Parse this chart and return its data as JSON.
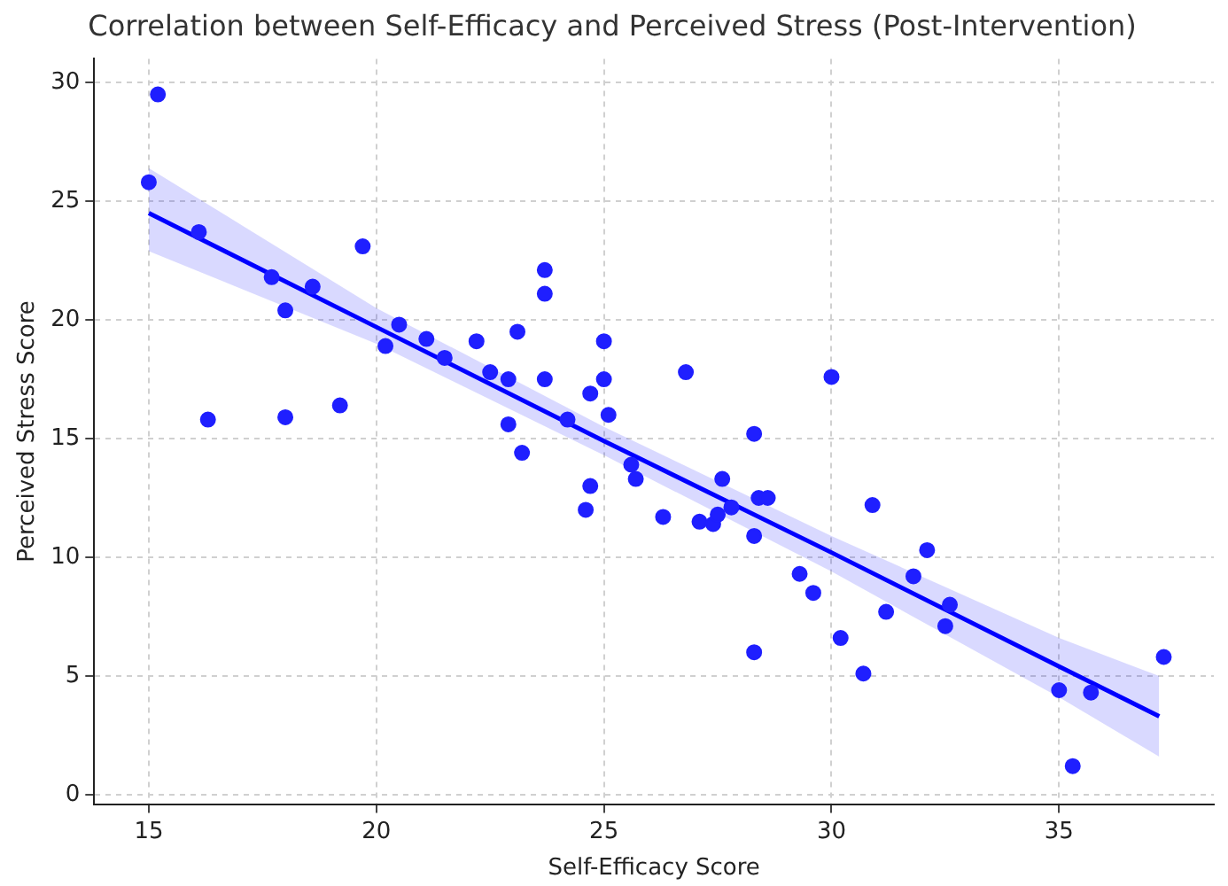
{
  "chart_data": {
    "type": "scatter",
    "title": "Correlation between Self-Efficacy and Perceived Stress (Post-Intervention)",
    "xlabel": "Self-Efficacy Score",
    "ylabel": "Perceived Stress Score",
    "xlim": [
      13.8,
      38.4
    ],
    "xticks": [
      15,
      20,
      25,
      30,
      35
    ],
    "ylim": [
      -0.4,
      31
    ],
    "yticks": [
      0,
      5,
      10,
      15,
      20,
      25,
      30
    ],
    "grid": true,
    "series": [
      {
        "marker": "circle",
        "color": "#1f1fff",
        "x": [
          15.0,
          15.2,
          16.1,
          16.3,
          17.7,
          18.0,
          18.0,
          18.6,
          19.2,
          19.7,
          20.2,
          20.5,
          21.1,
          21.5,
          22.2,
          22.5,
          22.9,
          22.9,
          23.1,
          23.2,
          23.7,
          23.7,
          23.7,
          24.2,
          24.6,
          24.7,
          24.7,
          25.0,
          25.0,
          25.1,
          25.6,
          25.7,
          26.3,
          26.8,
          27.1,
          27.4,
          27.5,
          27.6,
          27.8,
          28.3,
          28.3,
          28.3,
          28.4,
          28.6,
          29.3,
          29.6,
          30.0,
          30.2,
          30.7,
          30.9,
          31.2,
          31.8,
          32.1,
          32.5,
          32.6,
          35.0,
          35.3,
          35.7,
          37.3
        ],
        "values": [
          25.8,
          29.5,
          23.7,
          15.8,
          21.8,
          20.4,
          15.9,
          21.4,
          16.4,
          23.1,
          18.9,
          19.8,
          19.2,
          18.4,
          19.1,
          17.8,
          17.5,
          15.6,
          19.5,
          14.4,
          21.1,
          22.1,
          17.5,
          15.8,
          12.0,
          13.0,
          16.9,
          19.1,
          17.5,
          16.0,
          13.9,
          13.3,
          11.7,
          17.8,
          11.5,
          11.4,
          11.8,
          13.3,
          12.1,
          10.9,
          15.2,
          6.0,
          12.5,
          12.5,
          9.3,
          8.5,
          17.6,
          6.6,
          5.1,
          12.2,
          7.7,
          9.2,
          10.3,
          7.1,
          8.0,
          4.4,
          1.2,
          4.3,
          5.8
        ]
      },
      {
        "type": "line",
        "marker": "none",
        "color": "#0000ff",
        "x": [
          15,
          20,
          25,
          30,
          35,
          37.2
        ],
        "values": [
          24.5,
          19.7,
          14.9,
          10.2,
          5.4,
          3.3
        ],
        "lower": [
          22.9,
          19.0,
          14.3,
          9.4,
          4.1,
          1.6
        ],
        "upper": [
          26.4,
          20.5,
          15.5,
          10.9,
          6.6,
          5.0
        ]
      }
    ]
  }
}
